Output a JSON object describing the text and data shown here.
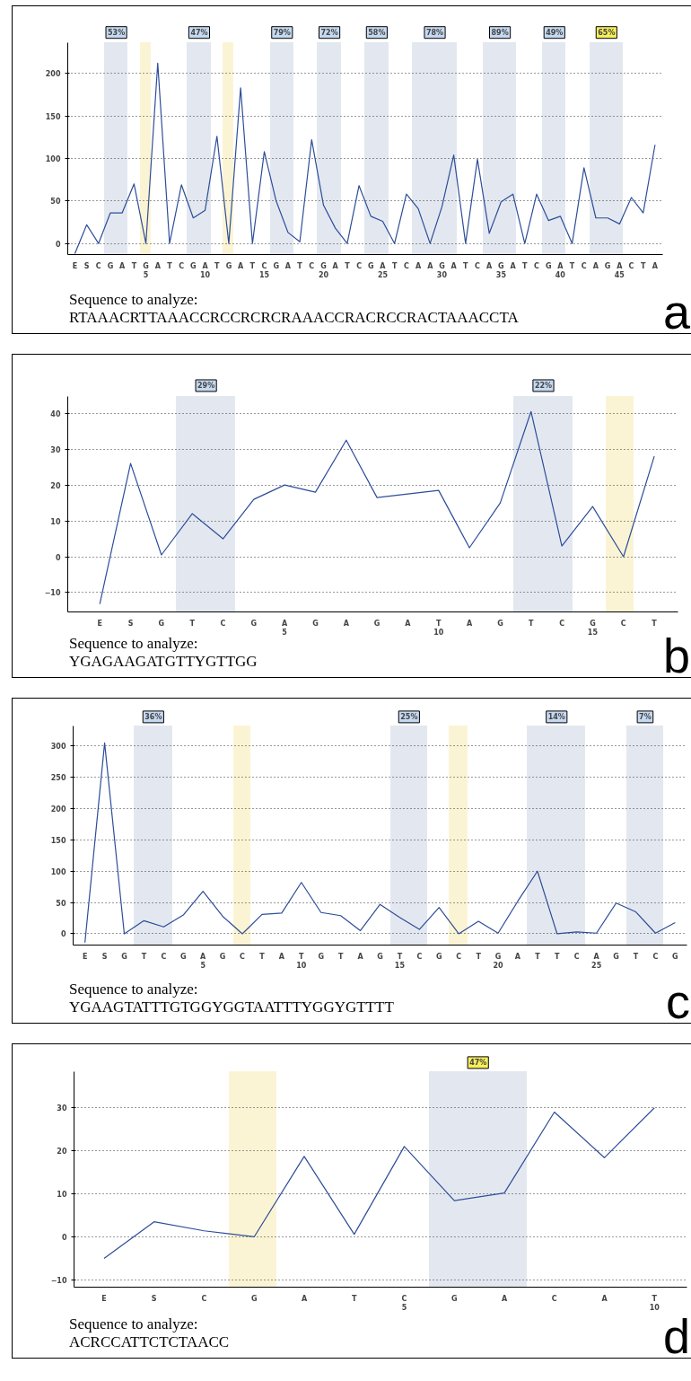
{
  "chart_data": [
    {
      "type": "line",
      "annotations": [
        "Sequence to analyze:",
        "RTAAACRTTAAACCRCCRCRCRAAACCRACRCCRACTAAACCTA",
        "a",
        "53%",
        "47%",
        "79%",
        "72%",
        "58%",
        "78%",
        "89%",
        "49%",
        "65%"
      ],
      "categories": [
        "E",
        "S",
        "C",
        "G",
        "A",
        "T",
        "G\n5",
        "A",
        "T",
        "C",
        "G",
        "A\n10",
        "T",
        "G",
        "A",
        "T",
        "C\n15",
        "G",
        "A",
        "T",
        "C",
        "G\n20",
        "A",
        "T",
        "C",
        "G",
        "A\n25",
        "T",
        "C",
        "A",
        "A",
        "G\n30",
        "A",
        "T",
        "C",
        "A",
        "G\n35",
        "A",
        "T",
        "C",
        "G",
        "A\n40",
        "T",
        "C",
        "A",
        "G",
        "A\n45",
        "C",
        "T",
        "A"
      ],
      "series": [
        {
          "color": "#2d4d99",
          "values": [
            -12,
            22,
            0,
            36,
            36,
            70,
            0,
            212,
            0,
            69,
            30,
            39,
            126,
            0,
            183,
            0,
            108,
            50,
            13,
            2,
            122,
            45,
            18,
            0,
            68,
            32,
            26,
            0,
            58,
            41,
            0,
            43,
            104,
            0,
            99,
            12,
            49,
            58,
            0,
            58,
            27,
            32,
            0,
            89,
            30,
            30,
            23,
            54,
            36,
            116
          ]
        }
      ],
      "ylim": [
        -13,
        236
      ],
      "yticks": [
        0,
        50,
        100,
        150,
        200
      ],
      "grid": "y"
    },
    {
      "type": "line",
      "annotations": [
        "Sequence to analyze:",
        "YGAGAAGATGTTYGTTGG",
        "b",
        "29%",
        "22%"
      ],
      "categories": [
        "E",
        "S",
        "G",
        "T",
        "C",
        "G",
        "A\n5",
        "G",
        "A",
        "G",
        "A",
        "T\n10",
        "A",
        "G",
        "T",
        "C",
        "G\n15",
        "C",
        "T"
      ],
      "series": [
        {
          "color": "#2d4d99",
          "values": [
            -13.2,
            26,
            0.5,
            12,
            5,
            16,
            20,
            18,
            32.5,
            16.5,
            17.5,
            18.5,
            2.5,
            15,
            40.5,
            3,
            14,
            0,
            28
          ]
        }
      ],
      "ylim": [
        -15.4,
        44.7
      ],
      "yticks": [
        -10,
        0,
        10,
        20,
        30,
        40
      ],
      "grid": "y"
    },
    {
      "type": "line",
      "annotations": [
        "Sequence to analyze:",
        "YGAAGTATTTGTGGYGGTAATTTYGGYGTTTT",
        "c",
        "36%",
        "25%",
        "14%",
        "7%"
      ],
      "categories": [
        "E",
        "S",
        "G",
        "T",
        "C",
        "G",
        "A\n5",
        "G",
        "C",
        "T",
        "A",
        "T\n10",
        "G",
        "T",
        "A",
        "G",
        "T\n15",
        "C",
        "G",
        "C",
        "T",
        "G\n20",
        "A",
        "T",
        "T",
        "C",
        "A\n25",
        "G",
        "T",
        "C",
        "G"
      ],
      "series": [
        {
          "color": "#2d4d99",
          "values": [
            -14,
            305,
            0,
            21,
            11,
            30,
            68,
            28,
            0,
            31,
            33,
            82,
            34,
            29,
            5,
            47,
            26,
            7,
            42,
            0,
            20,
            1,
            52,
            100,
            0,
            3,
            1,
            49,
            35,
            1,
            18
          ]
        }
      ],
      "ylim": [
        -18,
        332
      ],
      "yticks": [
        0,
        50,
        100,
        150,
        200,
        250,
        300
      ],
      "grid": "y"
    },
    {
      "type": "line",
      "annotations": [
        "Sequence to analyze:",
        "ACRCCATTCTCTAACC",
        "d",
        "47%"
      ],
      "categories": [
        "E",
        "S",
        "C",
        "G",
        "A",
        "T",
        "C\n5",
        "G",
        "A",
        "C",
        "A",
        "T\n10"
      ],
      "series": [
        {
          "color": "#2d4d99",
          "values": [
            -5,
            3.5,
            1.4,
            0,
            18.7,
            0.6,
            21,
            8.4,
            10.2,
            29,
            18.4,
            30
          ]
        }
      ],
      "ylim": [
        -11.7,
        38.4
      ],
      "yticks": [
        -10,
        0,
        10,
        20,
        30
      ],
      "grid": "y"
    }
  ]
}
